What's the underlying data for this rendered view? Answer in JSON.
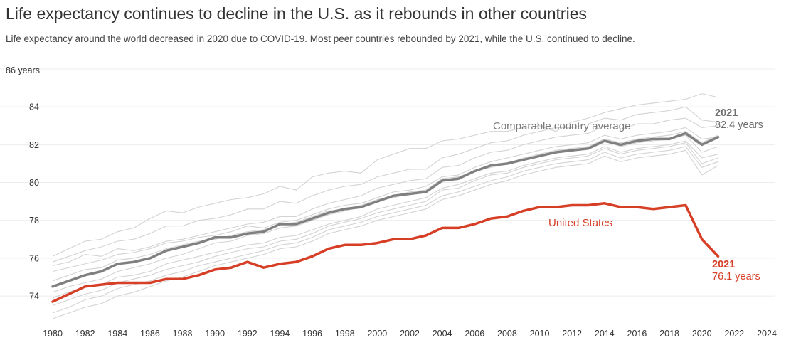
{
  "chart_data": {
    "type": "line",
    "title": "Life expectancy continues to decline in the U.S. as it rebounds in other countries",
    "subtitle": "Life expectancy around the world decreased in 2020 due to COVID-19. Most peer countries rebounded by 2021, while the U.S. continued to decline.",
    "xlim": [
      1980,
      2024
    ],
    "ylim": [
      72.8,
      86
    ],
    "x_ticks": [
      "1980",
      "1982",
      "1984",
      "1986",
      "1988",
      "1990",
      "1992",
      "1994",
      "1996",
      "1998",
      "2000",
      "2002",
      "2004",
      "2006",
      "2008",
      "2010",
      "2012",
      "2014",
      "2016",
      "2018",
      "2020",
      "2022",
      "2024"
    ],
    "y_ticks": [
      "74",
      "76",
      "78",
      "80",
      "82",
      "84"
    ],
    "y_top_label": "86 years",
    "x": [
      1980,
      1981,
      1982,
      1983,
      1984,
      1985,
      1986,
      1987,
      1988,
      1989,
      1990,
      1991,
      1992,
      1993,
      1994,
      1995,
      1996,
      1997,
      1998,
      1999,
      2000,
      2001,
      2002,
      2003,
      2004,
      2005,
      2006,
      2007,
      2008,
      2009,
      2010,
      2011,
      2012,
      2013,
      2014,
      2015,
      2016,
      2017,
      2018,
      2019,
      2020,
      2021
    ],
    "series": [
      {
        "name": "United States",
        "color": "#d63e26",
        "label": "United States",
        "end_year": "2021",
        "end_value_label": "76.1 years",
        "values": [
          73.7,
          74.1,
          74.5,
          74.6,
          74.7,
          74.7,
          74.7,
          74.9,
          74.9,
          75.1,
          75.4,
          75.5,
          75.8,
          75.5,
          75.7,
          75.8,
          76.1,
          76.5,
          76.7,
          76.7,
          76.8,
          77.0,
          77.0,
          77.2,
          77.6,
          77.6,
          77.8,
          78.1,
          78.2,
          78.5,
          78.7,
          78.7,
          78.8,
          78.8,
          78.9,
          78.7,
          78.7,
          78.6,
          78.7,
          78.8,
          77.0,
          76.1
        ]
      },
      {
        "name": "Comparable country average",
        "color": "#808080",
        "label": "Comparable country average",
        "end_year": "2021",
        "end_value_label": "82.4 years",
        "values": [
          74.5,
          74.8,
          75.1,
          75.3,
          75.7,
          75.8,
          76.0,
          76.4,
          76.6,
          76.8,
          77.1,
          77.1,
          77.3,
          77.4,
          77.8,
          77.8,
          78.1,
          78.4,
          78.6,
          78.7,
          79.0,
          79.3,
          79.4,
          79.5,
          80.1,
          80.2,
          80.6,
          80.9,
          81.0,
          81.2,
          81.4,
          81.6,
          81.7,
          81.8,
          82.2,
          82.0,
          82.2,
          82.3,
          82.3,
          82.6,
          82.0,
          82.4
        ]
      }
    ],
    "peer_countries": [
      {
        "color": "#d3d3d3",
        "values": [
          76.1,
          76.5,
          76.9,
          77.0,
          77.4,
          77.6,
          78.1,
          78.5,
          78.4,
          78.7,
          78.9,
          79.1,
          79.2,
          79.4,
          79.8,
          79.6,
          80.3,
          80.5,
          80.6,
          80.5,
          81.2,
          81.5,
          81.8,
          81.8,
          82.2,
          82.3,
          82.5,
          82.7,
          82.7,
          82.9,
          83.0,
          82.7,
          83.2,
          83.4,
          83.7,
          83.9,
          84.1,
          84.2,
          84.3,
          84.4,
          84.7,
          84.5
        ]
      },
      {
        "color": "#d3d3d3",
        "values": [
          75.8,
          76.1,
          76.4,
          76.6,
          76.9,
          77.0,
          77.3,
          77.7,
          77.7,
          78.0,
          78.1,
          78.3,
          78.6,
          78.6,
          79.0,
          78.9,
          79.3,
          79.6,
          79.8,
          79.9,
          80.3,
          80.5,
          80.7,
          80.7,
          81.3,
          81.5,
          81.8,
          82.1,
          82.2,
          82.5,
          82.7,
          82.9,
          82.9,
          83.1,
          83.4,
          83.3,
          83.6,
          83.7,
          83.8,
          84.0,
          83.3,
          83.2
        ]
      },
      {
        "color": "#d3d3d3",
        "values": [
          75.6,
          75.8,
          76.2,
          76.1,
          76.5,
          76.4,
          76.6,
          76.9,
          77.0,
          77.2,
          77.4,
          77.6,
          77.8,
          77.9,
          78.2,
          78.2,
          78.6,
          78.9,
          79.1,
          79.3,
          79.7,
          79.9,
          80.1,
          80.2,
          80.8,
          80.9,
          81.3,
          81.6,
          81.7,
          82.0,
          82.2,
          82.4,
          82.5,
          82.6,
          83.0,
          82.8,
          83.1,
          83.1,
          83.3,
          83.4,
          82.9,
          83.0
        ]
      },
      {
        "color": "#d3d3d3",
        "values": [
          75.3,
          75.5,
          75.7,
          75.9,
          76.2,
          76.3,
          76.5,
          76.8,
          76.9,
          77.1,
          77.2,
          77.4,
          77.7,
          77.6,
          77.9,
          78.0,
          78.3,
          78.6,
          78.8,
          78.9,
          79.2,
          79.5,
          79.6,
          79.8,
          80.3,
          80.4,
          80.8,
          81.1,
          81.3,
          81.5,
          81.7,
          81.9,
          82.0,
          82.1,
          82.5,
          82.3,
          82.5,
          82.6,
          82.7,
          82.9,
          82.3,
          82.4
        ]
      },
      {
        "color": "#d3d3d3",
        "values": [
          74.8,
          75.1,
          75.4,
          75.5,
          75.9,
          76.0,
          76.2,
          76.5,
          76.7,
          76.9,
          77.0,
          77.2,
          77.4,
          77.5,
          77.8,
          77.9,
          78.2,
          78.5,
          78.6,
          78.8,
          79.1,
          79.3,
          79.5,
          79.6,
          80.2,
          80.3,
          80.6,
          80.9,
          81.0,
          81.3,
          81.5,
          81.7,
          81.8,
          81.9,
          82.3,
          82.1,
          82.3,
          82.4,
          82.5,
          82.7,
          82.1,
          82.5
        ]
      },
      {
        "color": "#d3d3d3",
        "values": [
          74.2,
          74.5,
          74.7,
          74.9,
          75.3,
          75.5,
          75.7,
          76.0,
          76.2,
          76.5,
          76.8,
          76.9,
          77.2,
          77.3,
          77.6,
          77.7,
          78.0,
          78.3,
          78.5,
          78.7,
          79.0,
          79.2,
          79.4,
          79.6,
          80.1,
          80.3,
          80.6,
          80.8,
          81.0,
          81.2,
          81.4,
          81.6,
          81.7,
          81.8,
          82.2,
          81.9,
          82.1,
          82.2,
          82.3,
          82.5,
          81.6,
          81.9
        ]
      },
      {
        "color": "#d3d3d3",
        "values": [
          73.9,
          74.2,
          74.5,
          74.6,
          75.0,
          75.1,
          75.3,
          75.7,
          75.9,
          76.1,
          76.3,
          76.5,
          76.7,
          76.8,
          77.1,
          77.2,
          77.5,
          77.8,
          78.0,
          78.2,
          78.6,
          78.8,
          79.0,
          79.2,
          79.7,
          79.9,
          80.2,
          80.5,
          80.6,
          80.9,
          81.1,
          81.3,
          81.4,
          81.5,
          81.9,
          81.6,
          81.8,
          81.9,
          82.0,
          82.2,
          81.3,
          81.5
        ]
      },
      {
        "color": "#d3d3d3",
        "values": [
          73.5,
          73.8,
          74.1,
          74.3,
          74.7,
          74.9,
          75.1,
          75.4,
          75.6,
          75.8,
          76.1,
          76.3,
          76.5,
          76.6,
          76.9,
          77.0,
          77.3,
          77.7,
          77.9,
          78.1,
          78.4,
          78.6,
          78.8,
          79.0,
          79.6,
          79.7,
          80.1,
          80.4,
          80.5,
          80.8,
          81.0,
          81.2,
          81.3,
          81.4,
          81.8,
          81.5,
          81.7,
          81.8,
          81.9,
          82.1,
          81.0,
          81.3
        ]
      },
      {
        "color": "#d3d3d3",
        "values": [
          73.1,
          73.4,
          73.8,
          74.0,
          74.4,
          74.6,
          74.8,
          75.1,
          75.3,
          75.6,
          75.8,
          76.0,
          76.2,
          76.4,
          76.7,
          76.8,
          77.1,
          77.5,
          77.7,
          77.9,
          78.2,
          78.4,
          78.6,
          78.8,
          79.3,
          79.5,
          79.8,
          80.1,
          80.3,
          80.6,
          80.8,
          81.0,
          81.1,
          81.2,
          81.6,
          81.3,
          81.5,
          81.6,
          81.7,
          81.9,
          80.8,
          81.1
        ]
      },
      {
        "color": "#d3d3d3",
        "values": [
          72.8,
          73.1,
          73.4,
          73.6,
          74.0,
          74.2,
          74.5,
          74.8,
          75.0,
          75.3,
          75.6,
          75.8,
          76.0,
          76.2,
          76.5,
          76.6,
          76.9,
          77.3,
          77.5,
          77.7,
          78.0,
          78.2,
          78.4,
          78.6,
          79.1,
          79.3,
          79.6,
          79.9,
          80.1,
          80.4,
          80.6,
          80.8,
          80.9,
          81.0,
          81.4,
          81.1,
          81.3,
          81.4,
          81.5,
          81.7,
          80.4,
          80.9
        ]
      }
    ]
  }
}
